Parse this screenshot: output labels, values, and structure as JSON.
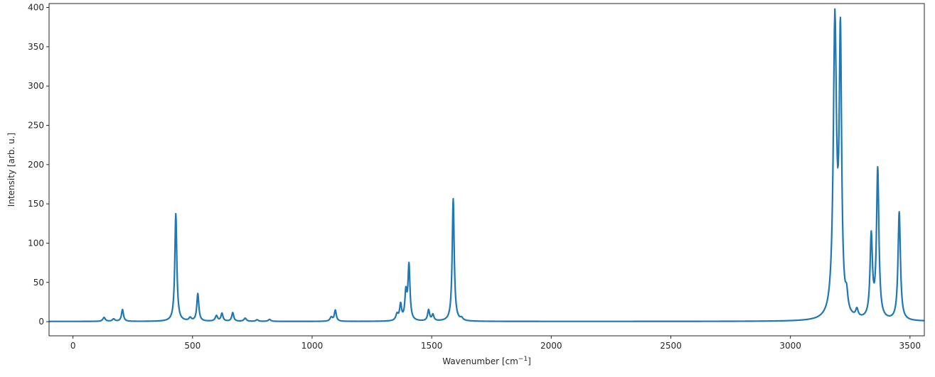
{
  "chart_data": {
    "type": "line",
    "title": "",
    "xlabel": "Wavenumber [cm",
    "xlabel_superscript": "−1",
    "xlabel_suffix": "]",
    "ylabel": "Intensity [arb. u.]",
    "xlim": [
      -100,
      3560
    ],
    "ylim": [
      -18,
      405
    ],
    "xticks": [
      0,
      500,
      1000,
      1500,
      2000,
      2500,
      3000,
      3500
    ],
    "yticks": [
      0,
      50,
      100,
      150,
      200,
      250,
      300,
      350,
      400
    ],
    "grid": false,
    "line_color": "#1f77b4",
    "peaks": [
      {
        "x": 130,
        "y": 5,
        "w": 6
      },
      {
        "x": 170,
        "y": 3,
        "w": 6
      },
      {
        "x": 207,
        "y": 15,
        "w": 5
      },
      {
        "x": 430,
        "y": 137,
        "w": 5
      },
      {
        "x": 490,
        "y": 4,
        "w": 6
      },
      {
        "x": 522,
        "y": 35,
        "w": 5
      },
      {
        "x": 600,
        "y": 7,
        "w": 6
      },
      {
        "x": 623,
        "y": 10,
        "w": 5
      },
      {
        "x": 668,
        "y": 11,
        "w": 5
      },
      {
        "x": 720,
        "y": 4,
        "w": 6
      },
      {
        "x": 770,
        "y": 2,
        "w": 6
      },
      {
        "x": 822,
        "y": 2.5,
        "w": 6
      },
      {
        "x": 1080,
        "y": 5,
        "w": 6
      },
      {
        "x": 1097,
        "y": 14,
        "w": 5
      },
      {
        "x": 1355,
        "y": 8,
        "w": 6
      },
      {
        "x": 1370,
        "y": 20,
        "w": 5
      },
      {
        "x": 1392,
        "y": 34,
        "w": 5
      },
      {
        "x": 1405,
        "y": 70,
        "w": 5
      },
      {
        "x": 1487,
        "y": 14,
        "w": 5
      },
      {
        "x": 1505,
        "y": 8,
        "w": 5
      },
      {
        "x": 1590,
        "y": 156,
        "w": 5
      },
      {
        "x": 1625,
        "y": 3,
        "w": 6
      },
      {
        "x": 3186,
        "y": 375,
        "w": 8
      },
      {
        "x": 3209,
        "y": 345,
        "w": 6
      },
      {
        "x": 3235,
        "y": 20,
        "w": 6
      },
      {
        "x": 3278,
        "y": 10,
        "w": 6
      },
      {
        "x": 3338,
        "y": 104,
        "w": 6
      },
      {
        "x": 3365,
        "y": 190,
        "w": 6
      },
      {
        "x": 3455,
        "y": 138,
        "w": 6
      }
    ],
    "x_range": [
      -100,
      3560
    ],
    "baseline": 0.3
  }
}
